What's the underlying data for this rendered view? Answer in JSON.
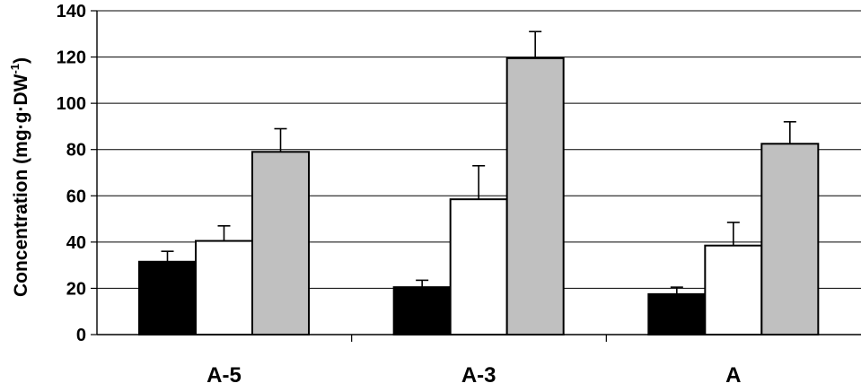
{
  "chart_data": {
    "type": "bar",
    "title": "",
    "xlabel": "",
    "ylabel": {
      "main": "Concentration (mg·g·DW",
      "sup": "-1",
      "close": ")"
    },
    "ylim": [
      0,
      140
    ],
    "yticks": [
      0,
      20,
      40,
      60,
      80,
      100,
      120,
      140
    ],
    "grid": true,
    "legend": "none",
    "categories": [
      "A-5",
      "A-3",
      "A"
    ],
    "series": [
      {
        "color": "#000000",
        "values": [
          31.5,
          20.5,
          17.5
        ],
        "errors": [
          4.5,
          3,
          3
        ]
      },
      {
        "color": "#ffffff",
        "values": [
          40.5,
          58.5,
          38.5
        ],
        "errors": [
          6.5,
          14.5,
          10
        ]
      },
      {
        "color": "#c0c0c0",
        "values": [
          79,
          119.5,
          82.5
        ],
        "errors": [
          10,
          11.5,
          9.5
        ]
      }
    ]
  }
}
